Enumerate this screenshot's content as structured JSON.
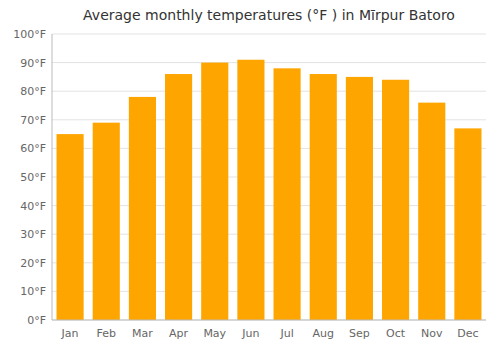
{
  "chart_data": {
    "type": "bar",
    "title": "Average monthly temperatures (°F ) in Mīrpur Batoro",
    "categories": [
      "Jan",
      "Feb",
      "Mar",
      "Apr",
      "May",
      "Jun",
      "Jul",
      "Aug",
      "Sep",
      "Oct",
      "Nov",
      "Dec"
    ],
    "values": [
      65,
      69,
      78,
      86,
      90,
      91,
      88,
      86,
      85,
      84,
      76,
      67
    ],
    "color": "#FFA500",
    "ylim": [
      0,
      100
    ],
    "yticks": [
      {
        "value": 0,
        "label": "0°F"
      },
      {
        "value": 10,
        "label": "10°F"
      },
      {
        "value": 20,
        "label": "20°F"
      },
      {
        "value": 30,
        "label": "30°F"
      },
      {
        "value": 40,
        "label": "40°F"
      },
      {
        "value": 50,
        "label": "50°F"
      },
      {
        "value": 60,
        "label": "60°F"
      },
      {
        "value": 70,
        "label": "70°F"
      },
      {
        "value": 80,
        "label": "80°F"
      },
      {
        "value": 90,
        "label": "90°F"
      },
      {
        "value": 100,
        "label": "100°F"
      }
    ],
    "grid": true
  }
}
